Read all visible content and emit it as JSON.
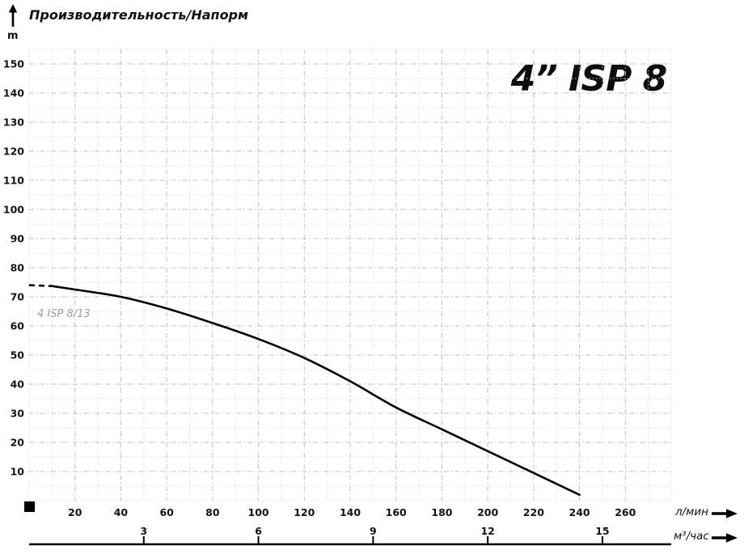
{
  "header": {
    "title": "Производительность/Напорм",
    "y_unit": "m"
  },
  "colors": {
    "curve": "#000000",
    "grid_major": "#c0c0c0",
    "grid_minor": "#dadada",
    "text": "#141414",
    "curve_label": "#9b9b9b"
  },
  "chart_data": {
    "type": "line",
    "title": "4” ISP 8",
    "x_axis": {
      "label": "л/мин",
      "range": [
        0,
        280
      ],
      "major_step": 20,
      "minor_step": 10,
      "ticks": [
        20,
        40,
        60,
        80,
        100,
        120,
        140,
        160,
        180,
        200,
        220,
        240,
        260
      ]
    },
    "x_axis_secondary": {
      "label": "м³/час",
      "ticks": [
        3,
        6,
        9,
        12,
        15
      ],
      "lmin_per_unit": 16.6667
    },
    "y_axis": {
      "label": "m",
      "range": [
        0,
        155
      ],
      "major_step": 10,
      "minor_step": 5,
      "ticks": [
        10,
        20,
        30,
        40,
        50,
        60,
        70,
        80,
        90,
        100,
        110,
        120,
        130,
        140,
        150
      ]
    },
    "series": [
      {
        "name": "4 ISP 8/13",
        "points_lmin_m": [
          [
            0,
            74
          ],
          [
            10,
            73.7
          ],
          [
            20,
            72.5
          ],
          [
            40,
            70
          ],
          [
            60,
            66
          ],
          [
            80,
            61
          ],
          [
            100,
            55.5
          ],
          [
            120,
            49
          ],
          [
            140,
            41
          ],
          [
            160,
            32
          ],
          [
            180,
            24.5
          ],
          [
            200,
            17
          ],
          [
            220,
            9.5
          ],
          [
            240,
            2
          ]
        ],
        "dashed_until_lmin": 10,
        "color": "#000000"
      }
    ],
    "grid": "dashed",
    "legend": "none"
  }
}
